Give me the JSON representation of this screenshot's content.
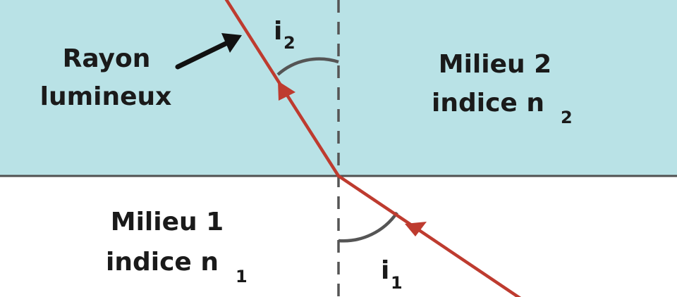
{
  "colors": {
    "medium2": "#b9e2e6",
    "medium1": "#ffffff",
    "interface": "#505050",
    "normal": "#555555",
    "ray": "#be3b2f",
    "pointer": "#111111",
    "angle_arc": "#555555",
    "text": "#1a1a1a"
  },
  "labels": {
    "ray": {
      "line1": "Rayon",
      "line2": "lumineux"
    },
    "medium2": {
      "line1": "Milieu 2",
      "line2": "indice n",
      "subscript": "2"
    },
    "medium1": {
      "line1": "Milieu 1",
      "line2": "indice n",
      "subscript": "1"
    },
    "angle_i2": {
      "symbol": "i",
      "subscript": "2"
    },
    "angle_i1": {
      "symbol": "i",
      "subscript": "1"
    }
  },
  "icons": {
    "pointer": "arrow-pointer-icon",
    "ray_direction": "triangle-arrowhead-icon"
  }
}
